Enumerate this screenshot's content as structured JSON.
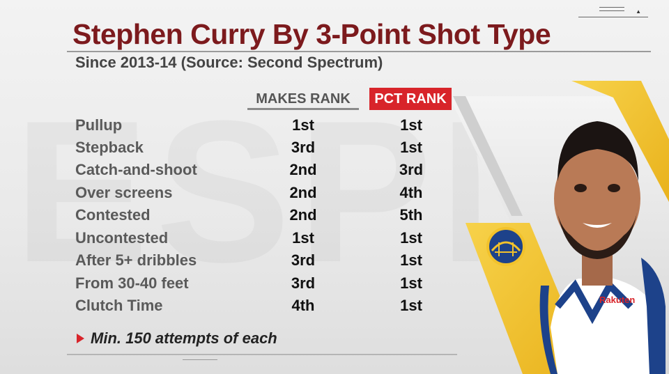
{
  "graphic": {
    "title": "Stephen Curry By 3-Point Shot Type",
    "subtitle": "Since 2013-14 (Source: Second Spectrum)",
    "background_watermark": "ESPN"
  },
  "table": {
    "headers": {
      "makes": "MAKES RANK",
      "pct": "PCT RANK"
    },
    "rows": [
      {
        "label": "Pullup",
        "makes": "1st",
        "pct": "1st"
      },
      {
        "label": "Stepback",
        "makes": "3rd",
        "pct": "1st"
      },
      {
        "label": "Catch-and-shoot",
        "makes": "2nd",
        "pct": "3rd"
      },
      {
        "label": "Over screens",
        "makes": "2nd",
        "pct": "4th"
      },
      {
        "label": "Contested",
        "makes": "2nd",
        "pct": "5th"
      },
      {
        "label": "Uncontested",
        "makes": "1st",
        "pct": "1st"
      },
      {
        "label": "After 5+ dribbles",
        "makes": "3rd",
        "pct": "1st"
      },
      {
        "label": "From 30-40 feet",
        "makes": "3rd",
        "pct": "1st"
      },
      {
        "label": "Clutch Time",
        "makes": "4th",
        "pct": "1st"
      }
    ]
  },
  "footnote": {
    "text": "Min. 150 attempts of each"
  },
  "player_panel": {
    "jersey_sponsor": "Rakuten",
    "logo_icon": "warriors-bridge-logo"
  },
  "colors": {
    "title": "#7c1a1d",
    "accent_red": "#d8242a",
    "gold": "#f2c22b",
    "royal_blue": "#1d428a"
  }
}
